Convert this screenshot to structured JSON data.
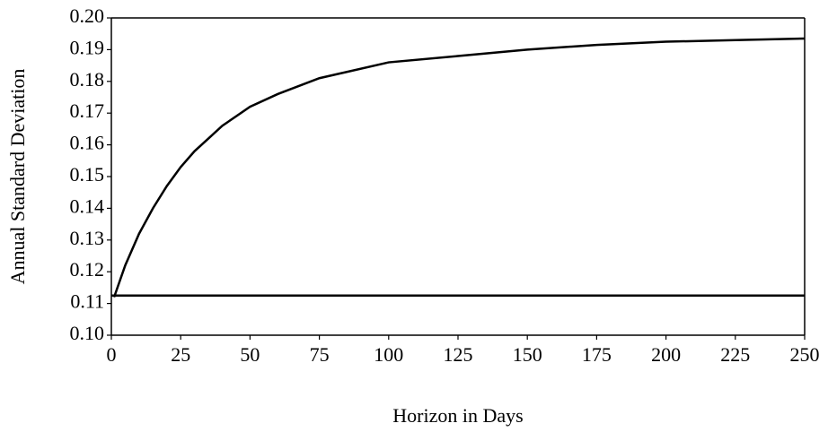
{
  "chart_data": {
    "type": "line",
    "x_label": "Horizon in Days",
    "y_label": "Annual Standard Deviation",
    "xlim": [
      0,
      250
    ],
    "xticks": [
      0,
      25,
      50,
      75,
      100,
      125,
      150,
      175,
      200,
      225,
      250
    ],
    "ylim": [
      0.1,
      0.2
    ],
    "yticks": [
      {
        "value": 0.1,
        "label": "0.10"
      },
      0.11,
      0.12,
      0.13,
      0.14,
      0.15,
      0.16,
      0.17,
      0.18,
      0.19,
      {
        "value": 0.2,
        "label": "0.20"
      }
    ],
    "grid": false,
    "series": [
      {
        "color": "#000000",
        "x": [
          1,
          5,
          10,
          15,
          20,
          25,
          30,
          35,
          40,
          50,
          60,
          75,
          100,
          125,
          150,
          175,
          200,
          225,
          250
        ],
        "values": [
          0.112,
          0.122,
          0.132,
          0.14,
          0.147,
          0.153,
          0.158,
          0.162,
          0.166,
          0.172,
          0.176,
          0.181,
          0.186,
          0.188,
          0.19,
          0.1915,
          0.1925,
          0.193,
          0.1935
        ]
      },
      {
        "color": "#000000",
        "x": [
          0,
          250
        ],
        "values": [
          0.1125,
          0.1125
        ]
      }
    ]
  }
}
